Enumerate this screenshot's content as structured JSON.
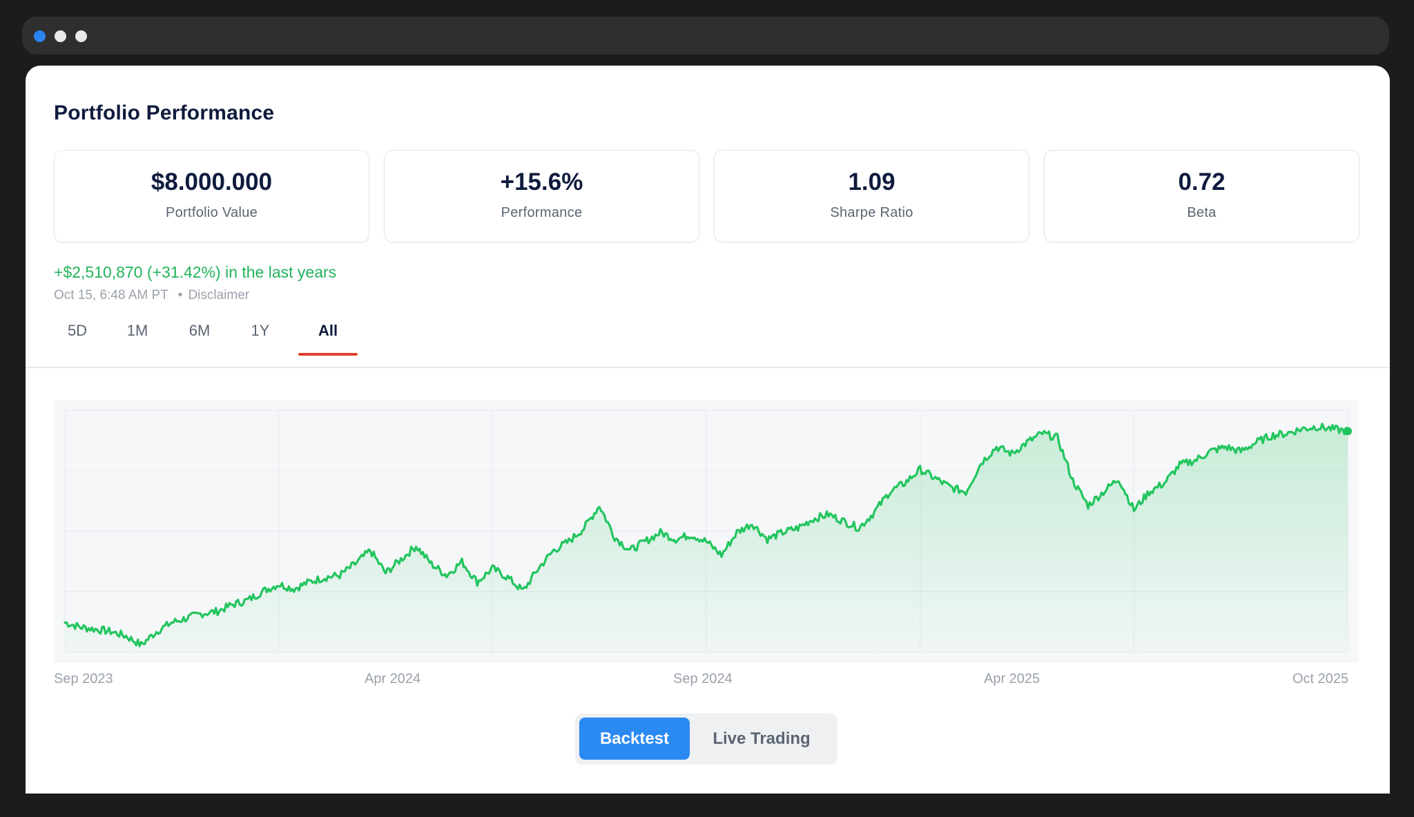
{
  "window": {
    "dots": [
      {
        "name": "window-dot-blue",
        "color": "#2a84f0"
      },
      {
        "name": "window-dot-white-1",
        "color": "#e9e9e9"
      },
      {
        "name": "window-dot-white-2",
        "color": "#e9e9e9"
      }
    ]
  },
  "page": {
    "title": "Portfolio Performance"
  },
  "stats": [
    {
      "value": "$8.000.000",
      "label": "Portfolio Value"
    },
    {
      "value": "+15.6%",
      "label": "Performance"
    },
    {
      "value": "1.09",
      "label": "Sharpe Ratio"
    },
    {
      "value": "0.72",
      "label": "Beta"
    }
  ],
  "summary": {
    "gain": "+$2,510,870 (+31.42%) in the last years",
    "timestamp": "Oct 15, 6:48 AM PT",
    "separator": "•",
    "disclaimer": "Disclaimer"
  },
  "tabs": [
    {
      "label": "5D",
      "active": false
    },
    {
      "label": "1M",
      "active": false
    },
    {
      "label": "6M",
      "active": false
    },
    {
      "label": "1Y",
      "active": false
    },
    {
      "label": "All",
      "active": true
    }
  ],
  "colors": {
    "accent_green": "#22c55e",
    "tab_underline": "#e0402e",
    "primary_button": "#2b8af2",
    "chart_background": "#f6f7f9"
  },
  "chart_data": {
    "type": "area",
    "x_tick_labels": [
      "Sep 2023",
      "Apr 2024",
      "Sep 2024",
      "Apr 2025",
      "Oct 2025"
    ],
    "grid": true,
    "y_axis_labels_shown": false,
    "endpoint_marker": true,
    "series": [
      {
        "values": [
          0.1,
          0.08,
          0.07,
          0.06,
          0.04,
          0.0,
          0.06,
          0.1,
          0.12,
          0.14,
          0.15,
          0.18,
          0.2,
          0.24,
          0.27,
          0.25,
          0.28,
          0.3,
          0.31,
          0.36,
          0.42,
          0.32,
          0.38,
          0.44,
          0.36,
          0.31,
          0.37,
          0.28,
          0.34,
          0.3,
          0.24,
          0.34,
          0.42,
          0.46,
          0.52,
          0.62,
          0.48,
          0.42,
          0.46,
          0.5,
          0.47,
          0.49,
          0.46,
          0.4,
          0.5,
          0.54,
          0.47,
          0.5,
          0.52,
          0.56,
          0.58,
          0.55,
          0.52,
          0.59,
          0.68,
          0.72,
          0.78,
          0.74,
          0.7,
          0.68,
          0.81,
          0.88,
          0.85,
          0.9,
          0.94,
          0.92,
          0.73,
          0.62,
          0.68,
          0.74,
          0.6,
          0.68,
          0.72,
          0.8,
          0.82,
          0.86,
          0.88,
          0.86,
          0.9,
          0.93,
          0.94,
          0.96,
          0.97,
          0.96,
          0.95
        ]
      }
    ]
  },
  "actions": {
    "backtest": "Backtest",
    "live_trading": "Live Trading"
  }
}
